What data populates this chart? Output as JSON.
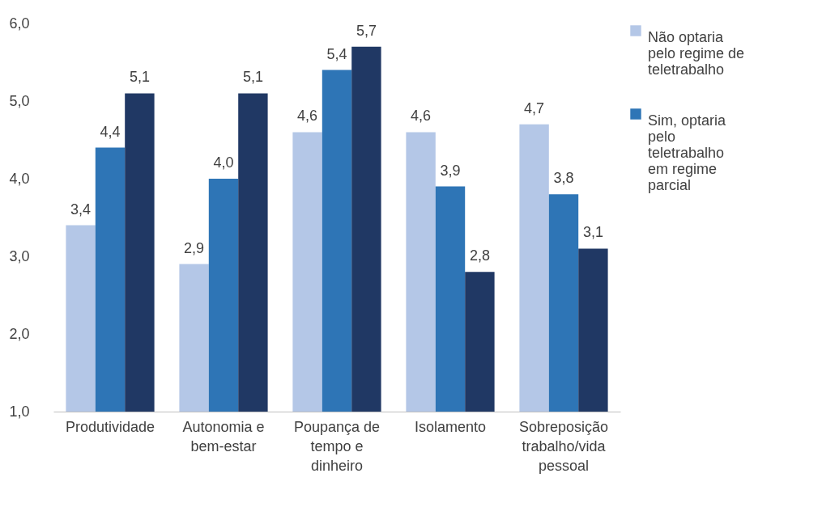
{
  "chart_data": {
    "type": "bar",
    "categories": [
      "Produtividade",
      "Autonomia e bem-estar",
      "Poupança de tempo e dinheiro",
      "Isolamento",
      "Sobreposição trabalho/vida pessoal"
    ],
    "series": [
      {
        "name": "Não optaria pelo regime de teletrabalho",
        "color": "#b4c7e7",
        "values": [
          3.4,
          2.9,
          4.6,
          4.6,
          4.7
        ],
        "value_labels": [
          "3,4",
          "2,9",
          "4,6",
          "4,6",
          "4,7"
        ]
      },
      {
        "name": "Sim, optaria pelo teletrabalho em regime parcial",
        "color": "#2e75b6",
        "values": [
          4.4,
          4.0,
          5.4,
          3.9,
          3.8
        ],
        "value_labels": [
          "4,4",
          "4,0",
          "5,4",
          "3,9",
          "3,8"
        ]
      },
      {
        "color": "#203864",
        "values": [
          5.1,
          5.1,
          5.7,
          2.8,
          3.1
        ],
        "value_labels": [
          "5,1",
          "5,1",
          "5,7",
          "2,8",
          "3,1"
        ]
      }
    ],
    "ylim": [
      1,
      6
    ],
    "yticks": [
      {
        "value": 1,
        "label": "1,0"
      },
      {
        "value": 2,
        "label": "2,0"
      },
      {
        "value": 3,
        "label": "3,0"
      },
      {
        "value": 4,
        "label": "4,0"
      },
      {
        "value": 5,
        "label": "5,0"
      },
      {
        "value": 6,
        "label": "6,0"
      }
    ],
    "grid": false,
    "legend": "right"
  }
}
